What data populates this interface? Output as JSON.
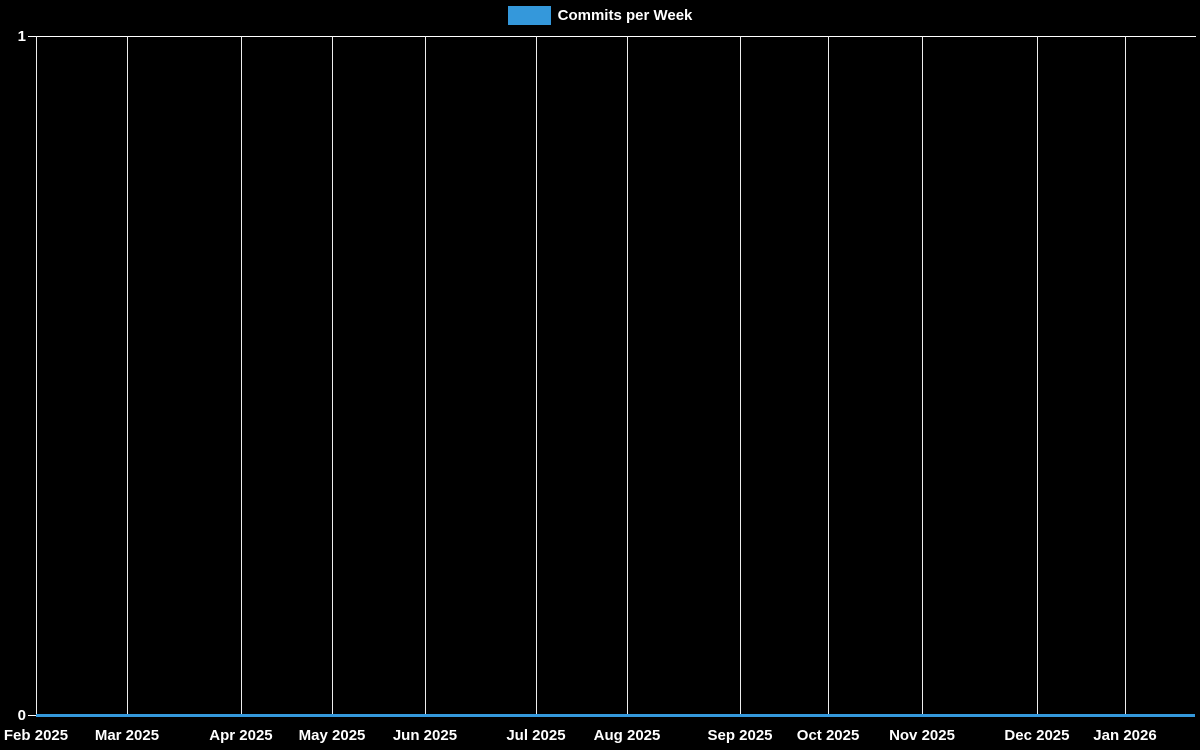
{
  "page": {
    "background_color": "#000000",
    "text_color": "#ffffff",
    "accent_color": "#3498db"
  },
  "legend": {
    "label": "Commits per Week",
    "swatch_color": "#3498db",
    "position": "top-center"
  },
  "chart_data": {
    "type": "line",
    "title": "",
    "xlabel": "",
    "ylabel": "",
    "x_ticks": [
      "Feb 2025",
      "Mar 2025",
      "Apr 2025",
      "May 2025",
      "Jun 2025",
      "Jul 2025",
      "Aug 2025",
      "Sep 2025",
      "Oct 2025",
      "Nov 2025",
      "Dec 2025",
      "Jan 2026"
    ],
    "x_tick_pct": [
      0,
      7.84,
      17.67,
      25.52,
      33.53,
      43.1,
      50.95,
      60.69,
      68.28,
      76.38,
      86.29,
      93.88
    ],
    "y_ticks": [
      "0",
      "1"
    ],
    "ylim": [
      0,
      1
    ],
    "grid": true,
    "legend_position": "top",
    "series": [
      {
        "name": "Commits per Week",
        "color": "#3498db",
        "values": [
          0,
          0,
          0,
          0,
          0,
          0,
          0,
          0,
          0,
          0,
          0,
          0
        ]
      }
    ],
    "colors": {
      "axis": "#ffffff",
      "gridline": "#ededed",
      "tick_text": "#ffffff"
    }
  }
}
